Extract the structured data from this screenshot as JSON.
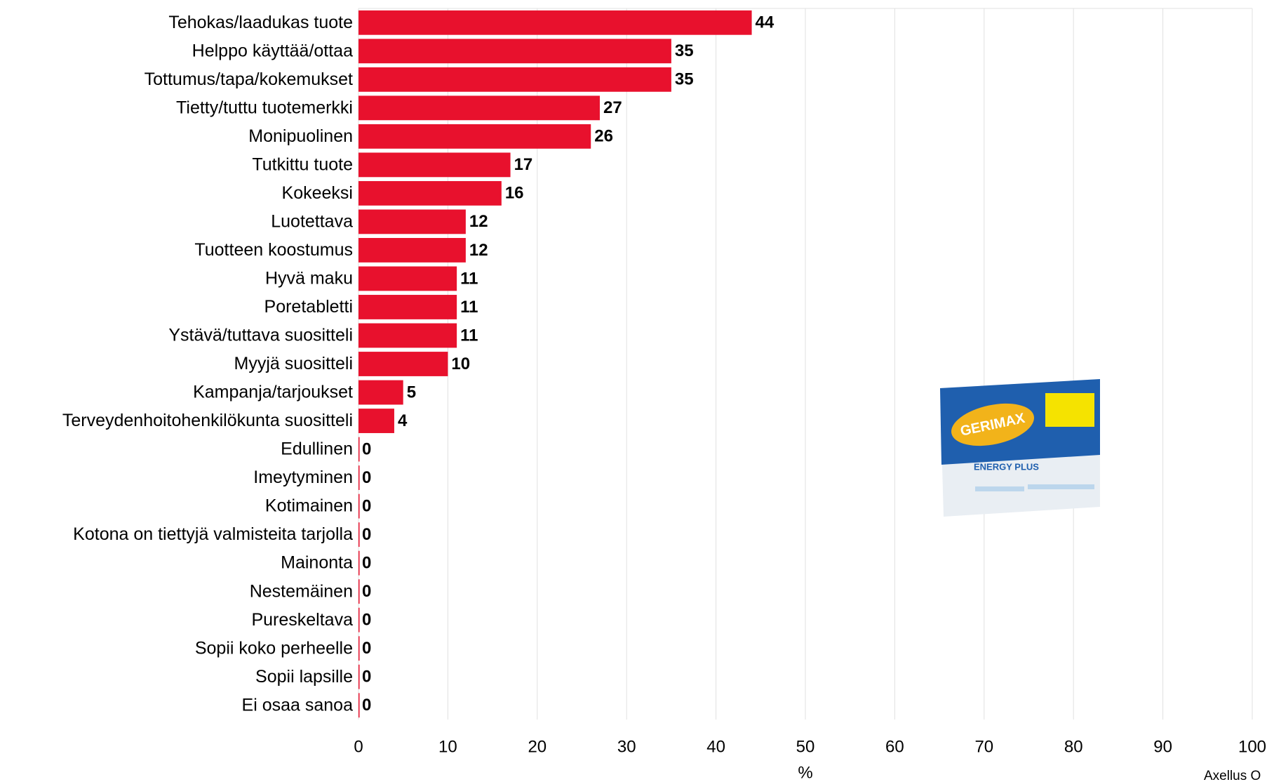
{
  "chart_data": {
    "type": "hbar",
    "categories": [
      "Tehokas/laadukas tuote",
      "Helppo käyttää/ottaa",
      "Tottumus/tapa/kokemukset",
      "Tietty/tuttu tuotemerkki",
      "Monipuolinen",
      "Tutkittu tuote",
      "Kokeeksi",
      "Luotettava",
      "Tuotteen koostumus",
      "Hyvä maku",
      "Poretabletti",
      "Ystävä/tuttava suositteli",
      "Myyjä suositteli",
      "Kampanja/tarjoukset",
      "Terveydenhoitohenkilökunta suositteli",
      "Edullinen",
      "Imeytyminen",
      "Kotimainen",
      "Kotona on tiettyjä valmisteita tarjolla",
      "Mainonta",
      "Nestemäinen",
      "Pureskeltava",
      "Sopii koko perheelle",
      "Sopii lapsille",
      "Ei osaa sanoa"
    ],
    "values": [
      44,
      35,
      35,
      27,
      26,
      17,
      16,
      12,
      12,
      11,
      11,
      11,
      10,
      5,
      4,
      0,
      0,
      0,
      0,
      0,
      0,
      0,
      0,
      0,
      0
    ],
    "color": "#e8112d",
    "xlim": [
      0,
      100
    ],
    "xticks": [
      0,
      10,
      20,
      30,
      40,
      50,
      60,
      70,
      80,
      90,
      100
    ],
    "grid": true,
    "x_label": "%",
    "source": "Axellus O",
    "annotations": [
      "GERIMAX",
      "ENERGY PLUS"
    ]
  }
}
